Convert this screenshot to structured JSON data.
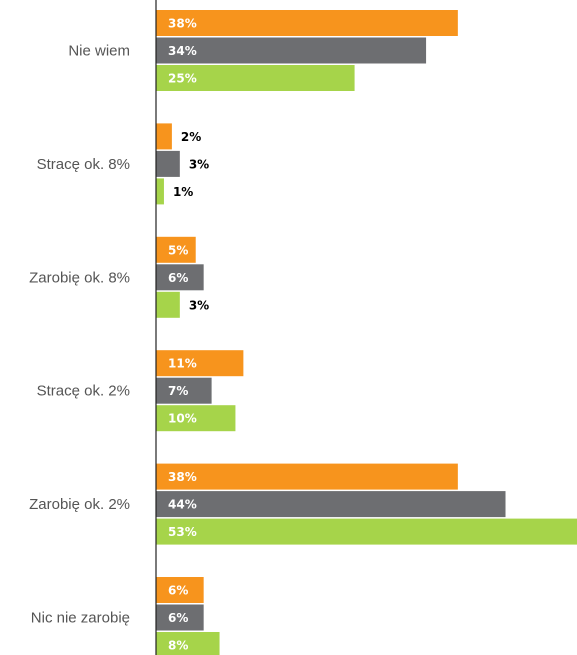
{
  "chart_data": {
    "type": "bar",
    "orientation": "horizontal",
    "categories": [
      "Nie wiem",
      "Stracę ok. 8%",
      "Zarobię ok. 8%",
      "Stracę ok. 2%",
      "Zarobię ok. 2%",
      "Nic nie zarobię"
    ],
    "series": [
      {
        "color": "#f7941d",
        "values": [
          38,
          2,
          5,
          11,
          38,
          6
        ],
        "labels": [
          "38%",
          "2%",
          "5%",
          "11%",
          "38%",
          "6%"
        ]
      },
      {
        "color": "#6d6e71",
        "values": [
          34,
          3,
          6,
          7,
          44,
          6
        ],
        "labels": [
          "34%",
          "3%",
          "6%",
          "7%",
          "44%",
          "6%"
        ]
      },
      {
        "color": "#a6d44a",
        "values": [
          25,
          1,
          3,
          10,
          53,
          8
        ],
        "labels": [
          "25%",
          "1%",
          "3%",
          "10%",
          "53%",
          "8%"
        ]
      }
    ],
    "xlim": [
      0,
      53
    ],
    "grid": false,
    "legend": "none",
    "label_colors": {
      "inside": "#ffffff",
      "outside": "#000000"
    }
  }
}
